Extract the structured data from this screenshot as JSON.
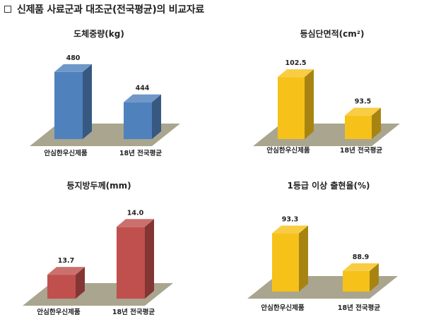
{
  "header": {
    "bullet": "□",
    "title": "신제품 사료군과 대조군(전국평균)의 비교자료"
  },
  "chart_data": [
    {
      "type": "bar",
      "title": "도체중량(kg)",
      "categories": [
        "안심한우신제품",
        "18년 전국평균"
      ],
      "values": [
        480,
        444
      ],
      "value_labels": [
        "480",
        "444"
      ],
      "color": "#4f81bd",
      "ylim": [
        400,
        490
      ],
      "grid": false
    },
    {
      "type": "bar",
      "title": "등심단면적(cm²)",
      "categories": [
        "안심한우신제품",
        "18년 전국평균"
      ],
      "values": [
        102.5,
        93.5
      ],
      "value_labels": [
        "102.5",
        "93.5"
      ],
      "color": "#f6c21a",
      "ylim": [
        88,
        104
      ],
      "grid": false
    },
    {
      "type": "bar",
      "title": "등지방두께(mm)",
      "categories": [
        "안심한우신제품",
        "18년 전국평균"
      ],
      "values": [
        13.7,
        14.0
      ],
      "value_labels": [
        "13.7",
        "14.0"
      ],
      "color": "#c0504d",
      "ylim": [
        13.55,
        14.05
      ],
      "grid": false
    },
    {
      "type": "bar",
      "title": "1등급 이상 출현율(%)",
      "categories": [
        "안심한우신제품",
        "18년 전국평균"
      ],
      "values": [
        93.3,
        88.9
      ],
      "value_labels": [
        "93.3",
        "88.9"
      ],
      "color": "#f6c21a",
      "ylim": [
        86.5,
        94.5
      ],
      "grid": false
    }
  ]
}
